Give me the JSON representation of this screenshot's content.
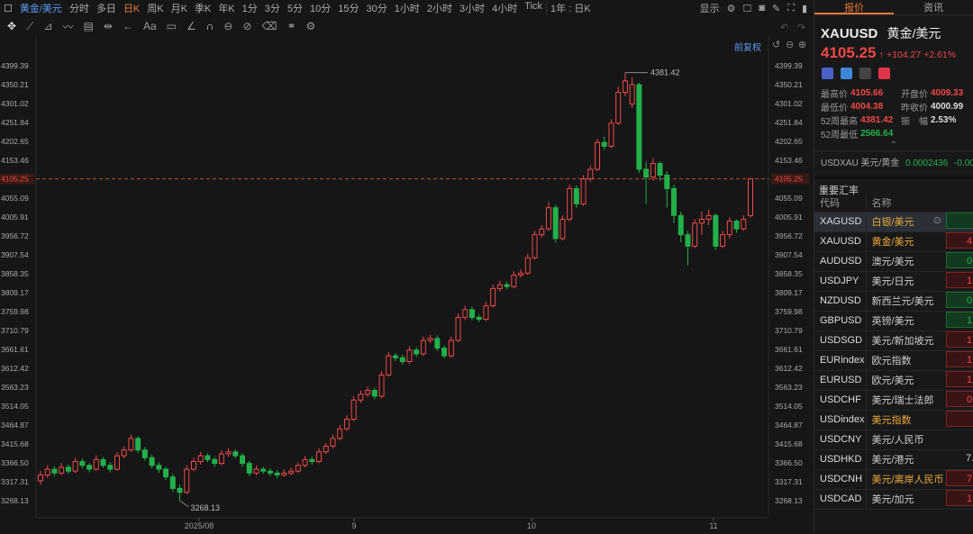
{
  "topbar": {
    "symbol": "黄金/美元",
    "periods": [
      "分时",
      "多日",
      "日K",
      "周K",
      "月K",
      "季K",
      "年K",
      "1分",
      "3分",
      "5分",
      "10分",
      "15分",
      "30分",
      "1小时",
      "2小时",
      "3小时",
      "4小时",
      "Tick"
    ],
    "active": "日K",
    "range": "1年 : 日K",
    "display": "显示"
  },
  "toolbar": {
    "text_tool": "Aa"
  },
  "chart": {
    "adjust": "前复权",
    "price_current": "4105.25",
    "hi_label": "4381.42",
    "lo_label": "3268.13",
    "price_ticks": [
      "4399.39",
      "4350.21",
      "4301.02",
      "4251.84",
      "4202.65",
      "4153.46",
      "4105.25",
      "4055.09",
      "4005.91",
      "3956.72",
      "3907.54",
      "3858.35",
      "3809.17",
      "3759.98",
      "3710.79",
      "3661.61",
      "3612.42",
      "3563.23",
      "3514.05",
      "3464.87",
      "3415.68",
      "3366.50",
      "3317.31",
      "3268.13"
    ],
    "date_ticks": [
      "2025/08",
      "9",
      "10",
      "11"
    ],
    "colors": {
      "up": "#f04848",
      "down": "#22b04a",
      "current_line": "#c0502a"
    }
  },
  "chart_data": {
    "type": "candlestick",
    "ylim": [
      3268.13,
      4399.39
    ],
    "ohlc": [
      [
        3320,
        3345,
        3310,
        3335
      ],
      [
        3335,
        3360,
        3328,
        3350
      ],
      [
        3350,
        3358,
        3332,
        3340
      ],
      [
        3340,
        3366,
        3335,
        3355
      ],
      [
        3355,
        3362,
        3338,
        3345
      ],
      [
        3345,
        3380,
        3340,
        3370
      ],
      [
        3370,
        3378,
        3352,
        3360
      ],
      [
        3360,
        3366,
        3342,
        3350
      ],
      [
        3350,
        3386,
        3346,
        3375
      ],
      [
        3375,
        3382,
        3354,
        3360
      ],
      [
        3360,
        3368,
        3342,
        3350
      ],
      [
        3350,
        3394,
        3346,
        3385
      ],
      [
        3385,
        3410,
        3378,
        3400
      ],
      [
        3400,
        3440,
        3395,
        3430
      ],
      [
        3430,
        3436,
        3392,
        3400
      ],
      [
        3400,
        3408,
        3372,
        3380
      ],
      [
        3380,
        3388,
        3352,
        3360
      ],
      [
        3360,
        3368,
        3340,
        3350
      ],
      [
        3350,
        3356,
        3322,
        3330
      ],
      [
        3330,
        3338,
        3292,
        3300
      ],
      [
        3300,
        3310,
        3268.13,
        3290
      ],
      [
        3290,
        3360,
        3285,
        3350
      ],
      [
        3350,
        3380,
        3345,
        3370
      ],
      [
        3370,
        3395,
        3362,
        3385
      ],
      [
        3385,
        3392,
        3368,
        3375
      ],
      [
        3375,
        3382,
        3356,
        3365
      ],
      [
        3365,
        3400,
        3360,
        3390
      ],
      [
        3390,
        3405,
        3382,
        3395
      ],
      [
        3395,
        3402,
        3378,
        3385
      ],
      [
        3385,
        3392,
        3356,
        3365
      ],
      [
        3365,
        3372,
        3332,
        3340
      ],
      [
        3340,
        3360,
        3334,
        3350
      ],
      [
        3350,
        3356,
        3338,
        3345
      ],
      [
        3345,
        3352,
        3332,
        3340
      ],
      [
        3340,
        3348,
        3326,
        3335
      ],
      [
        3335,
        3350,
        3330,
        3340
      ],
      [
        3340,
        3354,
        3334,
        3345
      ],
      [
        3345,
        3368,
        3340,
        3360
      ],
      [
        3360,
        3384,
        3355,
        3375
      ],
      [
        3375,
        3382,
        3362,
        3370
      ],
      [
        3370,
        3404,
        3366,
        3395
      ],
      [
        3395,
        3418,
        3390,
        3410
      ],
      [
        3410,
        3440,
        3405,
        3430
      ],
      [
        3430,
        3465,
        3425,
        3455
      ],
      [
        3455,
        3490,
        3450,
        3480
      ],
      [
        3480,
        3540,
        3475,
        3530
      ],
      [
        3530,
        3555,
        3522,
        3545
      ],
      [
        3545,
        3565,
        3538,
        3555
      ],
      [
        3555,
        3562,
        3532,
        3540
      ],
      [
        3540,
        3605,
        3535,
        3595
      ],
      [
        3595,
        3655,
        3590,
        3645
      ],
      [
        3645,
        3652,
        3632,
        3640
      ],
      [
        3640,
        3648,
        3622,
        3630
      ],
      [
        3630,
        3670,
        3625,
        3660
      ],
      [
        3660,
        3668,
        3642,
        3650
      ],
      [
        3650,
        3695,
        3645,
        3685
      ],
      [
        3685,
        3700,
        3678,
        3690
      ],
      [
        3690,
        3698,
        3658,
        3665
      ],
      [
        3665,
        3672,
        3638,
        3645
      ],
      [
        3645,
        3695,
        3640,
        3685
      ],
      [
        3685,
        3755,
        3680,
        3745
      ],
      [
        3745,
        3775,
        3738,
        3765
      ],
      [
        3765,
        3772,
        3738,
        3745
      ],
      [
        3745,
        3752,
        3732,
        3740
      ],
      [
        3740,
        3785,
        3735,
        3775
      ],
      [
        3775,
        3830,
        3770,
        3820
      ],
      [
        3820,
        3840,
        3812,
        3830
      ],
      [
        3830,
        3838,
        3818,
        3825
      ],
      [
        3825,
        3865,
        3820,
        3855
      ],
      [
        3855,
        3870,
        3848,
        3860
      ],
      [
        3860,
        3910,
        3855,
        3900
      ],
      [
        3900,
        3970,
        3895,
        3960
      ],
      [
        3960,
        3985,
        3952,
        3975
      ],
      [
        3975,
        4045,
        3970,
        4030
      ],
      [
        4030,
        4038,
        3940,
        3950
      ],
      [
        3950,
        4010,
        3945,
        4000
      ],
      [
        4000,
        4090,
        3995,
        4080
      ],
      [
        4080,
        4088,
        4030,
        4040
      ],
      [
        4040,
        4115,
        4035,
        4105
      ],
      [
        4105,
        4140,
        4098,
        4130
      ],
      [
        4130,
        4210,
        4125,
        4200
      ],
      [
        4200,
        4215,
        4180,
        4190
      ],
      [
        4190,
        4260,
        4185,
        4250
      ],
      [
        4250,
        4345,
        4245,
        4330
      ],
      [
        4330,
        4381.42,
        4320,
        4360
      ],
      [
        4300,
        4370,
        4290,
        4350
      ],
      [
        4350,
        4355,
        4120,
        4130
      ],
      [
        4130,
        4150,
        4040,
        4110
      ],
      [
        4110,
        4160,
        4100,
        4145
      ],
      [
        4145,
        4150,
        4100,
        4115
      ],
      [
        4115,
        4125,
        4030,
        4080
      ],
      [
        4080,
        4090,
        3990,
        4010
      ],
      [
        4010,
        4020,
        3940,
        3960
      ],
      [
        3960,
        3970,
        3880,
        3930
      ],
      [
        3930,
        4000,
        3925,
        3990
      ],
      [
        3990,
        4020,
        3960,
        4000
      ],
      [
        4000,
        4025,
        3985,
        4010
      ],
      [
        4010,
        4015,
        3920,
        3930
      ],
      [
        3930,
        3970,
        3925,
        3960
      ],
      [
        3960,
        4005,
        3950,
        3995
      ],
      [
        3995,
        4000,
        3965,
        3975
      ],
      [
        3975,
        4010,
        3970,
        4000
      ],
      [
        4009.33,
        4105.66,
        4004.38,
        4105.25
      ]
    ]
  },
  "panel": {
    "tabs": [
      "报价",
      "资讯"
    ],
    "code": "XAUUSD",
    "name": "黄金/美元",
    "price": "4105.25",
    "arrow": "↑",
    "change": "+104.27",
    "pct": "+2.61%",
    "stats": [
      {
        "label": "最高价",
        "value": "4105.66",
        "color": "red"
      },
      {
        "label": "开盘价",
        "value": "4009.33",
        "color": "red"
      },
      {
        "label": "最低价",
        "value": "4004.38",
        "color": "red"
      },
      {
        "label": "昨收价",
        "value": "4000.99",
        "color": "white"
      },
      {
        "label": "52周最高",
        "value": "4381.42",
        "color": "red"
      },
      {
        "label": "振　幅",
        "value": "2.53%",
        "color": "white"
      },
      {
        "label": "52周最低",
        "value": "2566.64",
        "color": "green"
      }
    ],
    "inverse": {
      "label": "USDXAU 美元/黄金",
      "value": "0.0002436",
      "change": "-0.00"
    },
    "section": "重要汇率",
    "headers": [
      "代码",
      "名称"
    ],
    "rows": [
      {
        "code": "XAGUSD",
        "name": "白银/美元",
        "val": "",
        "c": "bg",
        "hl": true
      },
      {
        "code": "XAUUSD",
        "name": "黄金/美元",
        "val": "4",
        "c": "br",
        "hl": true
      },
      {
        "code": "AUDUSD",
        "name": "澳元/美元",
        "val": "0.",
        "c": "bg"
      },
      {
        "code": "USDJPY",
        "name": "美元/日元",
        "val": "1.",
        "c": "br"
      },
      {
        "code": "NZDUSD",
        "name": "新西兰元/美元",
        "val": "0.",
        "c": "bg"
      },
      {
        "code": "GBPUSD",
        "name": "英镑/美元",
        "val": "1.",
        "c": "bg"
      },
      {
        "code": "USDSGD",
        "name": "美元/新加坡元",
        "val": "1.",
        "c": "br"
      },
      {
        "code": "EURindex",
        "name": "欧元指数",
        "val": "1",
        "c": "br"
      },
      {
        "code": "EURUSD",
        "name": "欧元/美元",
        "val": "1.",
        "c": "br"
      },
      {
        "code": "USDCHF",
        "name": "美元/瑞士法郎",
        "val": "0.",
        "c": "br"
      },
      {
        "code": "USDindex",
        "name": "美元指数",
        "val": "",
        "c": "br",
        "hl": true
      },
      {
        "code": "USDCNY",
        "name": "美元/人民币",
        "val": "",
        "c": "bn"
      },
      {
        "code": "USDHKD",
        "name": "美元/港元",
        "val": "7.",
        "c": "bn"
      },
      {
        "code": "USDCNH",
        "name": "美元/离岸人民币",
        "val": "7.",
        "c": "br",
        "hl": true
      },
      {
        "code": "USDCAD",
        "name": "美元/加元",
        "val": "1.",
        "c": "br"
      }
    ]
  }
}
